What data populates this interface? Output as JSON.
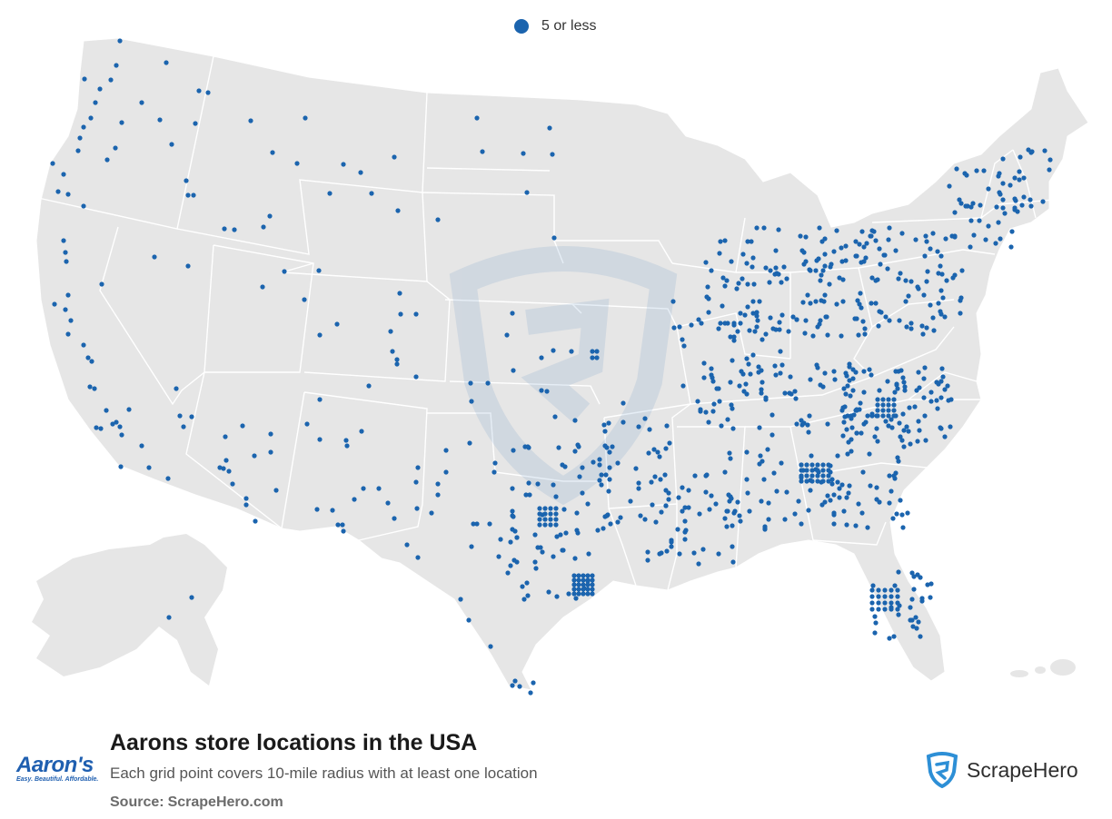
{
  "legend": {
    "label": "5 or less",
    "dot_color": "#1b64ae"
  },
  "map": {
    "region": "Contiguous United States, Alaska and Hawaii",
    "land_color": "#e6e6e6",
    "border_color": "#ffffff",
    "watermark_icon": "scrapehero-shield-icon",
    "dot_color": "#1b64ae"
  },
  "footer": {
    "title": "Aarons store locations in the USA",
    "subtitle": "Each grid point covers 10-mile radius with at least one location",
    "source_label": "Source:",
    "source_value": "ScrapeHero.com"
  },
  "brand_logo": {
    "name": "Aaron's",
    "tagline": "Easy. Beautiful. Affordable."
  },
  "scrapehero_logo": {
    "name": "ScrapeHero",
    "icon": "scrapehero-shield-icon"
  }
}
